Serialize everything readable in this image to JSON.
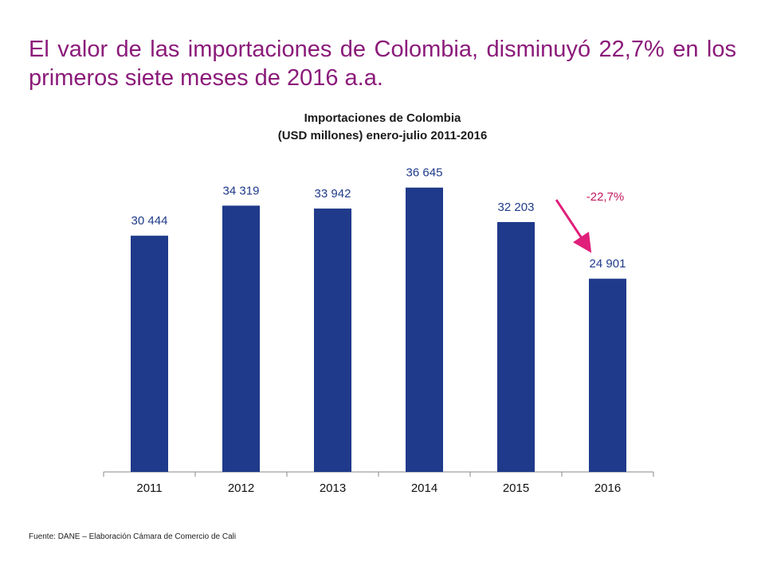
{
  "headline": "El valor de las importaciones de Colombia, disminuyó 22,7% en los primeros siete meses de 2016 a.a.",
  "colors": {
    "headline": "#8B1B7A",
    "bar": "#1F3A8A",
    "value_label": "#1F3A8A",
    "change_label": "#C2185B",
    "arrow": "#E01F7A",
    "axis": "#888888"
  },
  "chart_data": {
    "type": "bar",
    "title": "Importaciones de Colombia",
    "subtitle": "(USD millones) enero-julio 2011-2016",
    "categories": [
      "2011",
      "2012",
      "2013",
      "2014",
      "2015",
      "2016"
    ],
    "values": [
      30444,
      34319,
      33942,
      36645,
      32203,
      24901
    ],
    "value_labels": [
      "30 444",
      "34 319",
      "33 942",
      "36 645",
      "32 203",
      "24 901"
    ],
    "ylim": [
      0,
      40000
    ],
    "grid": false,
    "legend": "none",
    "annotation": {
      "text": "-22,7%",
      "from": "2015",
      "to": "2016"
    }
  },
  "source": "Fuente: DANE – Elaboración Cámara de Comercio de Cali"
}
